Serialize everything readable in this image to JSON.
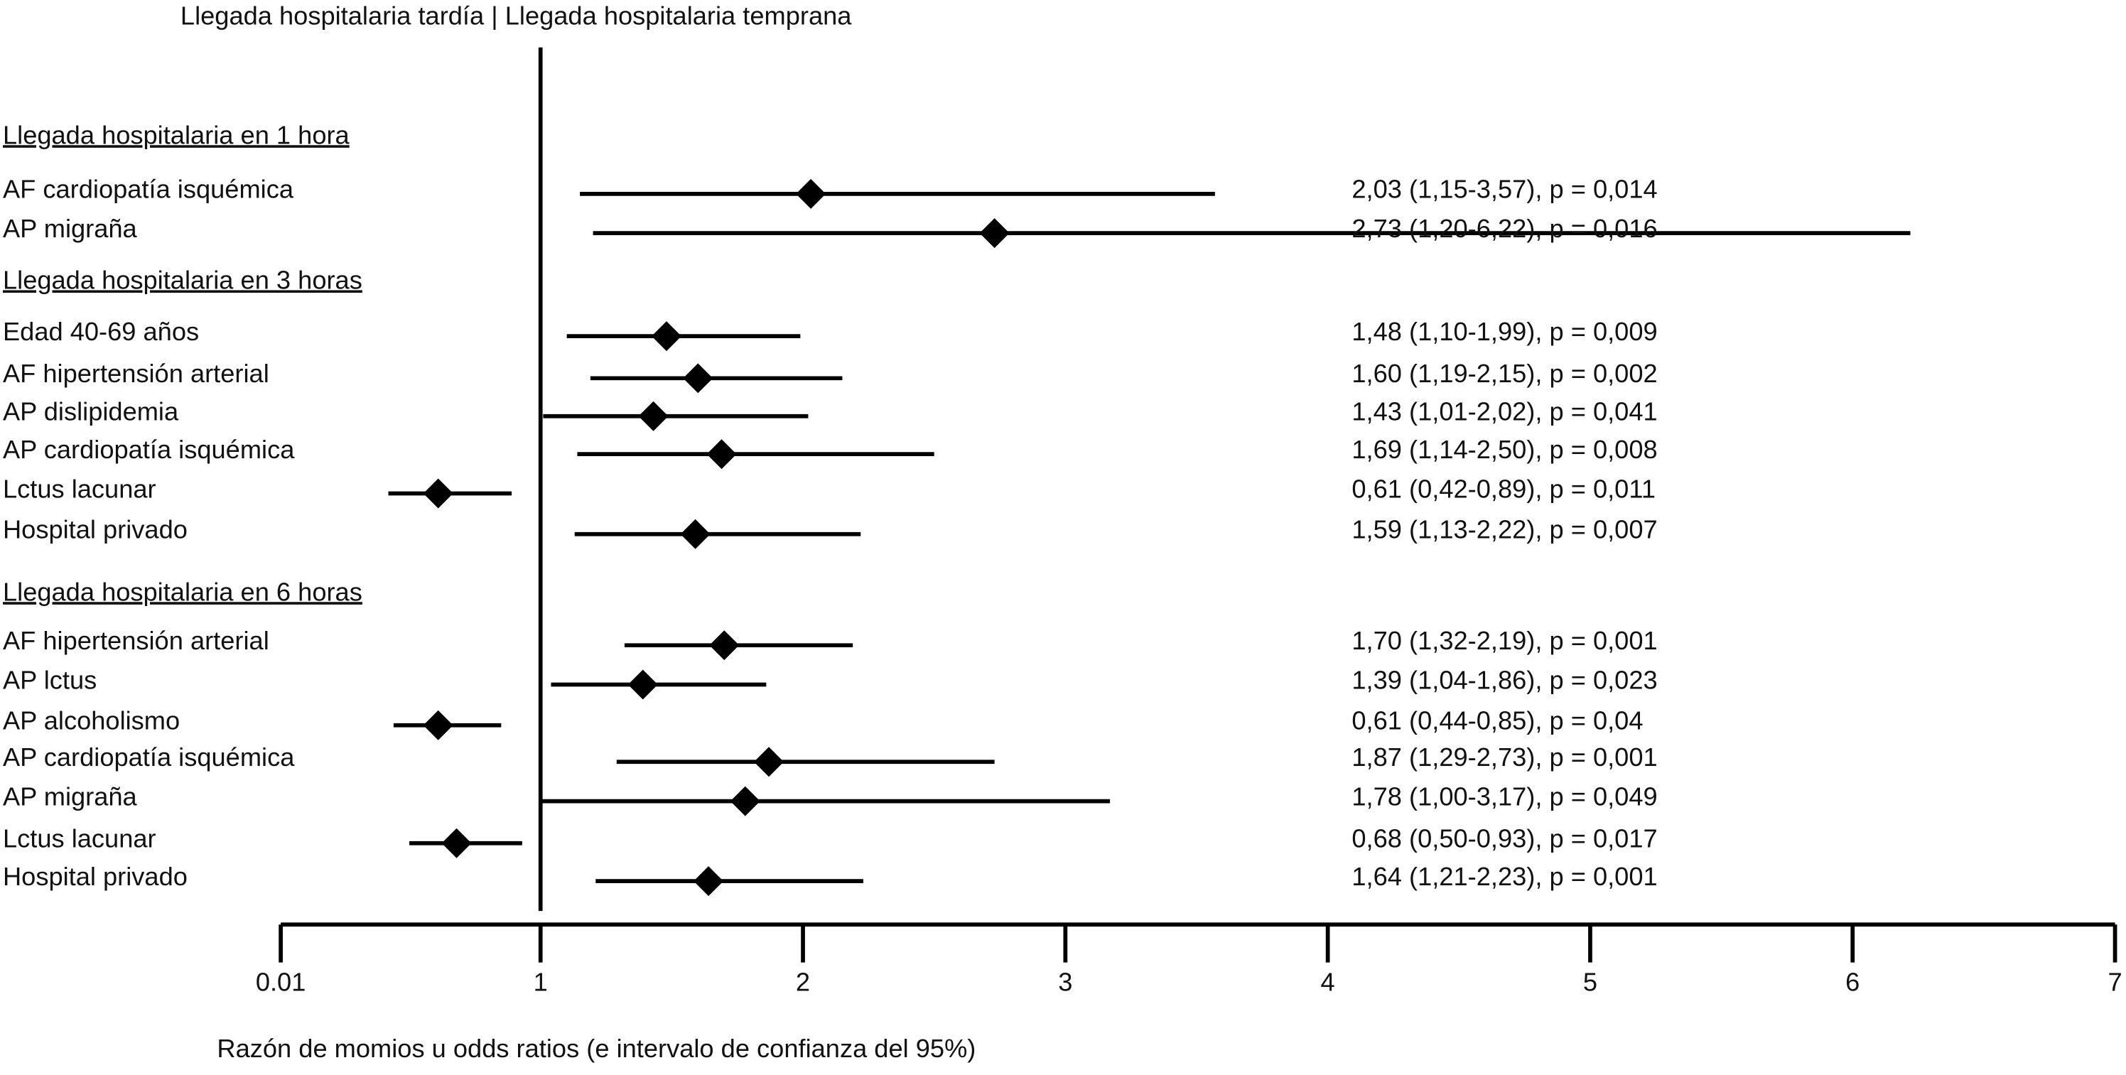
{
  "chart_data": {
    "type": "forest",
    "title": "Llegada hospitalaria tardía | Llegada hospitalaria temprana",
    "x_label": "Razón de momios u odds ratios (e intervalo de confianza del 95%)",
    "xlim": [
      0.01,
      7
    ],
    "xticks": [
      0.01,
      1,
      2,
      3,
      4,
      5,
      6,
      7
    ],
    "color": "#000000",
    "groups": [
      {
        "name": "Llegada hospitalaria en 1 hora",
        "rows": [
          {
            "label": "AF cardiopatía isquémica",
            "value": 2.03,
            "ci": [
              1.15,
              3.57
            ],
            "value_label": "2,03 (1,15-3,57), p = 0,014"
          },
          {
            "label": "AP migraña",
            "value": 2.73,
            "ci": [
              1.2,
              6.22
            ],
            "value_label": "2,73 (1,20-6,22), p = 0,016"
          }
        ]
      },
      {
        "name": "Llegada hospitalaria en 3 horas",
        "rows": [
          {
            "label": "Edad 40-69 años",
            "value": 1.48,
            "ci": [
              1.1,
              1.99
            ],
            "value_label": "1,48 (1,10-1,99), p = 0,009"
          },
          {
            "label": "AF hipertensión arterial",
            "value": 1.6,
            "ci": [
              1.19,
              2.15
            ],
            "value_label": "1,60 (1,19-2,15), p = 0,002"
          },
          {
            "label": "AP dislipidemia",
            "value": 1.43,
            "ci": [
              1.01,
              2.02
            ],
            "value_label": "1,43 (1,01-2,02), p = 0,041"
          },
          {
            "label": "AP cardiopatía isquémica",
            "value": 1.69,
            "ci": [
              1.14,
              2.5
            ],
            "value_label": "1,69 (1,14-2,50), p = 0,008"
          },
          {
            "label": "Lctus lacunar",
            "value": 0.61,
            "ci": [
              0.42,
              0.89
            ],
            "value_label": "0,61 (0,42-0,89), p = 0,011"
          },
          {
            "label": "Hospital privado",
            "value": 1.59,
            "ci": [
              1.13,
              2.22
            ],
            "value_label": "1,59 (1,13-2,22), p = 0,007"
          }
        ]
      },
      {
        "name": "Llegada hospitalaria en 6 horas",
        "rows": [
          {
            "label": "AF hipertensión arterial",
            "value": 1.7,
            "ci": [
              1.32,
              2.19
            ],
            "value_label": "1,70 (1,32-2,19), p = 0,001"
          },
          {
            "label": "AP lctus",
            "value": 1.39,
            "ci": [
              1.04,
              1.86
            ],
            "value_label": "1,39 (1,04-1,86), p = 0,023"
          },
          {
            "label": "AP alcoholismo",
            "value": 0.61,
            "ci": [
              0.44,
              0.85
            ],
            "value_label": "0,61 (0,44-0,85), p = 0,04"
          },
          {
            "label": "AP cardiopatía isquémica",
            "value": 1.87,
            "ci": [
              1.29,
              2.73
            ],
            "value_label": "1,87 (1,29-2,73), p = 0,001"
          },
          {
            "label": "AP migraña",
            "value": 1.78,
            "ci": [
              1.0,
              3.17
            ],
            "value_label": "1,78 (1,00-3,17), p = 0,049"
          },
          {
            "label": "Lctus lacunar",
            "value": 0.68,
            "ci": [
              0.5,
              0.93
            ],
            "value_label": "0,68 (0,50-0,93), p = 0,017"
          },
          {
            "label": "Hospital privado",
            "value": 1.64,
            "ci": [
              1.21,
              2.23
            ],
            "value_label": "1,64 (1,21-2,23), p = 0,001"
          }
        ]
      }
    ]
  }
}
